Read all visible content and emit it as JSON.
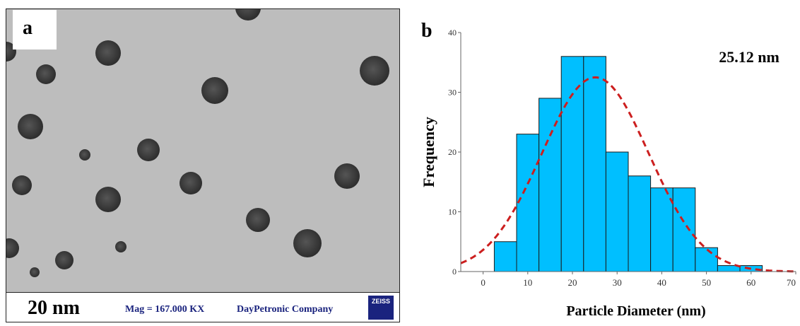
{
  "panel_a": {
    "letter": "a",
    "scale_label": "20 nm",
    "magnification": "Mag = 167.000 KX",
    "company": "DayPetronic Company",
    "logo_text": "ZEISS",
    "background_color": "#bdbdbd",
    "particle_color": "#3a3a3a"
  },
  "chart_data": {
    "type": "bar",
    "panel_letter": "b",
    "bin_edges": [
      2.5,
      7.5,
      12.5,
      17.5,
      22.5,
      27.5,
      32.5,
      37.5,
      42.5,
      47.5,
      52.5,
      57.5,
      62.5
    ],
    "values": [
      5,
      23,
      29,
      36,
      36,
      20,
      16,
      14,
      14,
      4,
      1,
      1
    ],
    "xlabel": "Particle Diameter (nm)",
    "ylabel": "Frequency",
    "xlim": [
      -5,
      70
    ],
    "ylim": [
      0,
      40
    ],
    "xticks": [
      0,
      10,
      20,
      30,
      40,
      50,
      60,
      70
    ],
    "yticks": [
      0,
      10,
      20,
      30,
      40
    ],
    "annotation": "25.12 nm",
    "fit_curve": {
      "type": "normal",
      "mean": 25.12,
      "sd": 12,
      "peak": 32.5
    },
    "bar_color": "#00bfff",
    "curve_color": "#cc1f1f",
    "grid": false
  }
}
